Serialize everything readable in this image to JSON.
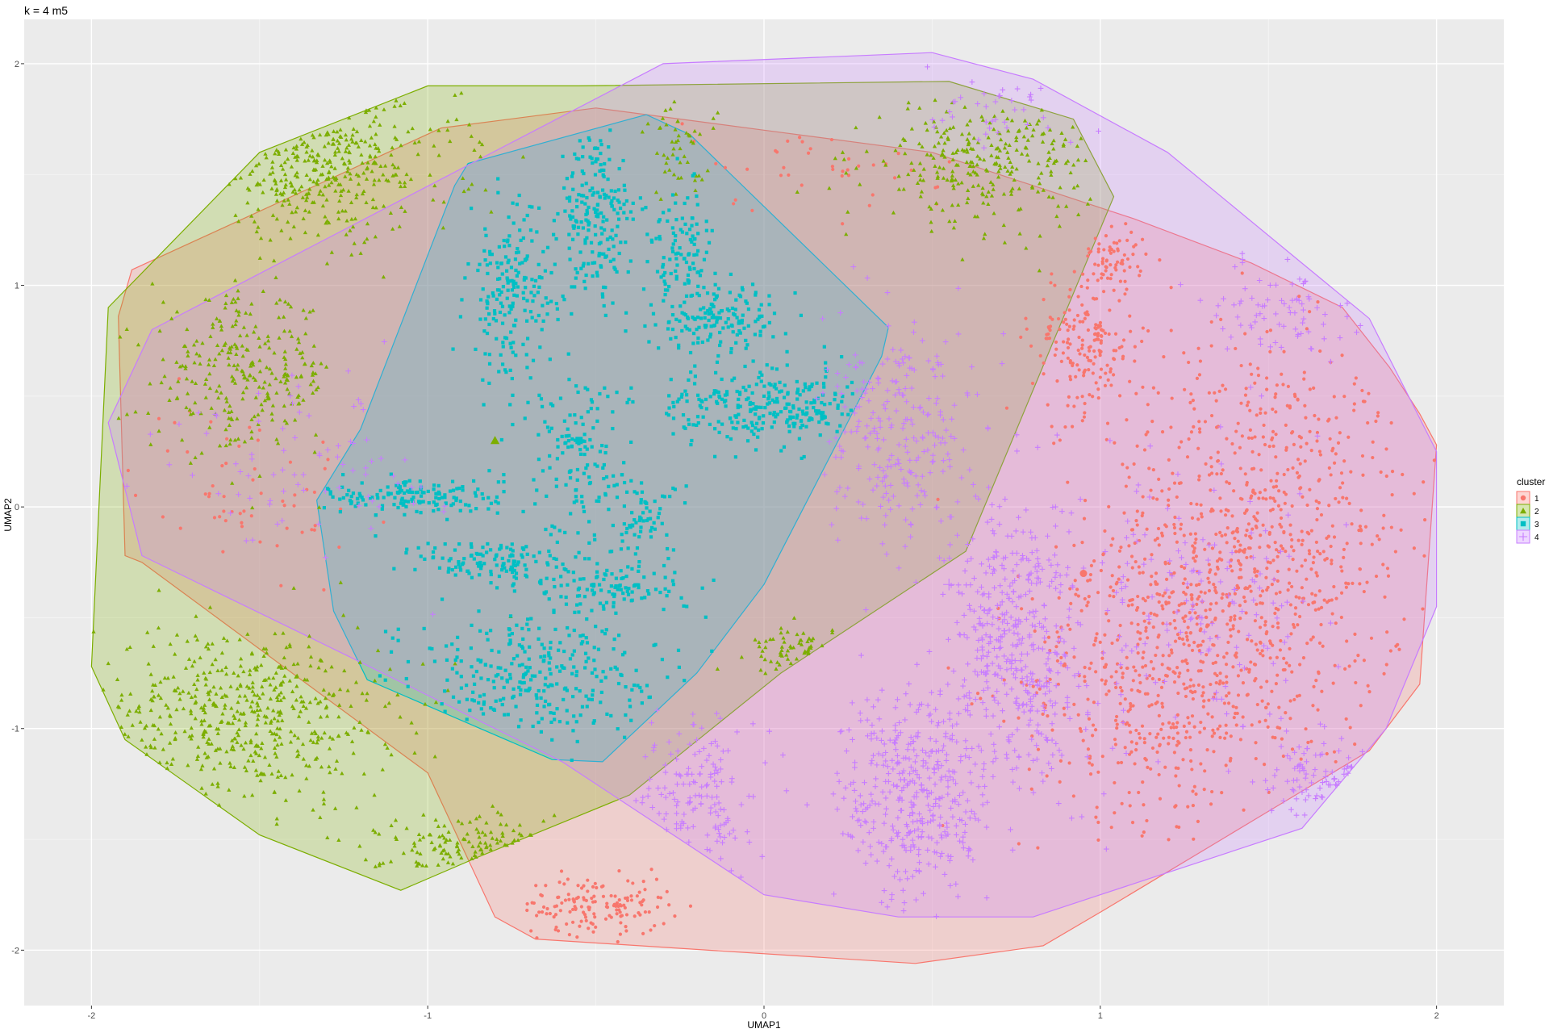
{
  "chart_data": {
    "type": "scatter",
    "title": "k = 4 m5",
    "xlabel": "UMAP1",
    "ylabel": "UMAP2",
    "xlim": [
      -2.2,
      2.2
    ],
    "ylim": [
      -2.25,
      2.2
    ],
    "xticks": [
      -2,
      -1,
      0,
      1,
      2
    ],
    "yticks": [
      -2,
      -1,
      0,
      1,
      2
    ],
    "xtick_labels": [
      "-2",
      "-1",
      "0",
      "1",
      "2"
    ],
    "ytick_labels": [
      "-2",
      "-1",
      "0",
      "1",
      "2"
    ],
    "grid": true,
    "legend": {
      "title": "cluster",
      "position": "right"
    },
    "series": [
      {
        "name": "1",
        "color": "#F8766D",
        "shape": "circle",
        "centroid": [
          0.95,
          -0.3
        ],
        "hull": [
          [
            -0.68,
            -1.95
          ],
          [
            0.45,
            -2.06
          ],
          [
            0.83,
            -1.98
          ],
          [
            1.01,
            -1.82
          ],
          [
            1.8,
            -1.1
          ],
          [
            1.95,
            -0.8
          ],
          [
            2.0,
            0.28
          ],
          [
            1.95,
            0.42
          ],
          [
            1.86,
            0.63
          ],
          [
            1.72,
            0.9
          ],
          [
            1.45,
            1.1
          ],
          [
            1.1,
            1.3
          ],
          [
            0.5,
            1.6
          ],
          [
            0.0,
            1.7
          ],
          [
            -0.5,
            1.8
          ],
          [
            -0.96,
            1.71
          ],
          [
            -1.88,
            1.07
          ],
          [
            -1.92,
            0.86
          ],
          [
            -1.9,
            -0.22
          ],
          [
            -1.85,
            -0.25
          ],
          [
            -1.0,
            -1.2
          ],
          [
            -0.8,
            -1.85
          ]
        ],
        "blobs": [
          {
            "cx": 1.45,
            "cy": -0.2,
            "rx": 0.42,
            "ry": 0.9,
            "n": 900
          },
          {
            "cx": 1.15,
            "cy": -0.8,
            "rx": 0.35,
            "ry": 0.55,
            "n": 400
          },
          {
            "cx": 0.95,
            "cy": 0.75,
            "rx": 0.14,
            "ry": 0.3,
            "n": 180
          },
          {
            "cx": 1.05,
            "cy": 1.12,
            "rx": 0.08,
            "ry": 0.12,
            "n": 60
          },
          {
            "cx": -0.5,
            "cy": -1.8,
            "rx": 0.2,
            "ry": 0.12,
            "n": 150
          },
          {
            "cx": -1.55,
            "cy": 0.1,
            "rx": 0.3,
            "ry": 0.35,
            "n": 60
          },
          {
            "cx": 0.2,
            "cy": 1.6,
            "rx": 0.4,
            "ry": 0.25,
            "n": 40
          }
        ]
      },
      {
        "name": "2",
        "color": "#7CAE00",
        "shape": "triangle",
        "centroid": [
          -0.8,
          0.3
        ],
        "hull": [
          [
            -1.08,
            -1.73
          ],
          [
            -0.85,
            -1.58
          ],
          [
            -0.4,
            -1.3
          ],
          [
            0.05,
            -0.75
          ],
          [
            0.6,
            -0.2
          ],
          [
            1.04,
            1.4
          ],
          [
            0.92,
            1.75
          ],
          [
            0.55,
            1.92
          ],
          [
            -0.55,
            1.9
          ],
          [
            -1.0,
            1.9
          ],
          [
            -1.5,
            1.6
          ],
          [
            -1.95,
            0.9
          ],
          [
            -2.0,
            -0.72
          ],
          [
            -1.9,
            -1.05
          ],
          [
            -1.5,
            -1.48
          ]
        ],
        "blobs": [
          {
            "cx": -1.55,
            "cy": -0.95,
            "rx": 0.4,
            "ry": 0.38,
            "n": 500
          },
          {
            "cx": -1.3,
            "cy": 1.55,
            "rx": 0.35,
            "ry": 0.3,
            "n": 350
          },
          {
            "cx": -1.55,
            "cy": 0.6,
            "rx": 0.25,
            "ry": 0.32,
            "n": 280
          },
          {
            "cx": 0.65,
            "cy": 1.55,
            "rx": 0.3,
            "ry": 0.25,
            "n": 280
          },
          {
            "cx": -0.8,
            "cy": -1.55,
            "rx": 0.3,
            "ry": 0.15,
            "n": 120
          },
          {
            "cx": 0.1,
            "cy": -0.65,
            "rx": 0.12,
            "ry": 0.1,
            "n": 60
          },
          {
            "cx": -0.25,
            "cy": 1.6,
            "rx": 0.1,
            "ry": 0.2,
            "n": 50
          }
        ]
      },
      {
        "name": "3",
        "color": "#00BFC4",
        "shape": "square",
        "centroid": [
          -0.55,
          0.3
        ],
        "hull": [
          [
            -0.48,
            -1.15
          ],
          [
            -0.63,
            -1.14
          ],
          [
            -1.18,
            -0.78
          ],
          [
            -1.28,
            -0.47
          ],
          [
            -1.33,
            0.03
          ],
          [
            -1.2,
            0.35
          ],
          [
            -0.92,
            1.45
          ],
          [
            -0.88,
            1.55
          ],
          [
            -0.35,
            1.77
          ],
          [
            -0.22,
            1.68
          ],
          [
            0.37,
            0.81
          ],
          [
            0.35,
            0.68
          ],
          [
            0.0,
            -0.35
          ],
          [
            -0.2,
            -0.75
          ]
        ],
        "blobs": [
          {
            "cx": -0.75,
            "cy": 0.95,
            "rx": 0.12,
            "ry": 0.35,
            "n": 200
          },
          {
            "cx": -0.5,
            "cy": 1.3,
            "rx": 0.1,
            "ry": 0.35,
            "n": 200
          },
          {
            "cx": -0.25,
            "cy": 1.15,
            "rx": 0.1,
            "ry": 0.25,
            "n": 120
          },
          {
            "cx": -0.12,
            "cy": 0.85,
            "rx": 0.18,
            "ry": 0.14,
            "n": 150
          },
          {
            "cx": -0.1,
            "cy": 0.45,
            "rx": 0.2,
            "ry": 0.15,
            "n": 150
          },
          {
            "cx": 0.12,
            "cy": 0.45,
            "rx": 0.15,
            "ry": 0.15,
            "n": 120
          },
          {
            "cx": -1.05,
            "cy": 0.05,
            "rx": 0.25,
            "ry": 0.08,
            "n": 150
          },
          {
            "cx": -0.8,
            "cy": -0.25,
            "rx": 0.2,
            "ry": 0.1,
            "n": 120
          },
          {
            "cx": -0.45,
            "cy": -0.35,
            "rx": 0.22,
            "ry": 0.12,
            "n": 120
          },
          {
            "cx": -0.7,
            "cy": -0.75,
            "rx": 0.35,
            "ry": 0.25,
            "n": 300
          },
          {
            "cx": -0.55,
            "cy": 0.2,
            "rx": 0.15,
            "ry": 0.4,
            "n": 150
          },
          {
            "cx": -0.35,
            "cy": -0.05,
            "rx": 0.1,
            "ry": 0.15,
            "n": 60
          }
        ]
      },
      {
        "name": "4",
        "color": "#C77CFF",
        "shape": "plus",
        "centroid": [
          0.55,
          -0.35
        ],
        "hull": [
          [
            -1.82,
            0.8
          ],
          [
            -1.95,
            0.38
          ],
          [
            -1.85,
            -0.22
          ],
          [
            -1.2,
            -0.7
          ],
          [
            -0.6,
            -1.15
          ],
          [
            0.0,
            -1.75
          ],
          [
            0.4,
            -1.85
          ],
          [
            0.8,
            -1.85
          ],
          [
            1.0,
            -1.75
          ],
          [
            1.6,
            -1.45
          ],
          [
            1.85,
            -1.0
          ],
          [
            2.0,
            -0.45
          ],
          [
            2.0,
            0.25
          ],
          [
            1.8,
            0.85
          ],
          [
            1.6,
            1.1
          ],
          [
            1.2,
            1.6
          ],
          [
            0.8,
            1.93
          ],
          [
            0.5,
            2.05
          ],
          [
            -0.3,
            2.0
          ]
        ],
        "blobs": [
          {
            "cx": 0.45,
            "cy": -1.3,
            "rx": 0.2,
            "ry": 0.45,
            "n": 400
          },
          {
            "cx": 0.75,
            "cy": -0.6,
            "rx": 0.18,
            "ry": 0.6,
            "n": 450
          },
          {
            "cx": 0.4,
            "cy": 0.3,
            "rx": 0.2,
            "ry": 0.45,
            "n": 250
          },
          {
            "cx": -0.2,
            "cy": -1.3,
            "rx": 0.15,
            "ry": 0.3,
            "n": 150
          },
          {
            "cx": 1.65,
            "cy": -1.2,
            "rx": 0.15,
            "ry": 0.2,
            "n": 80
          },
          {
            "cx": 1.55,
            "cy": 0.9,
            "rx": 0.2,
            "ry": 0.2,
            "n": 80
          },
          {
            "cx": 0.7,
            "cy": 1.8,
            "rx": 0.25,
            "ry": 0.15,
            "n": 40
          },
          {
            "cx": -1.35,
            "cy": 0.2,
            "rx": 0.35,
            "ry": 0.4,
            "n": 80
          },
          {
            "cx": 1.3,
            "cy": -0.4,
            "rx": 0.4,
            "ry": 0.6,
            "n": 150
          }
        ]
      }
    ]
  }
}
